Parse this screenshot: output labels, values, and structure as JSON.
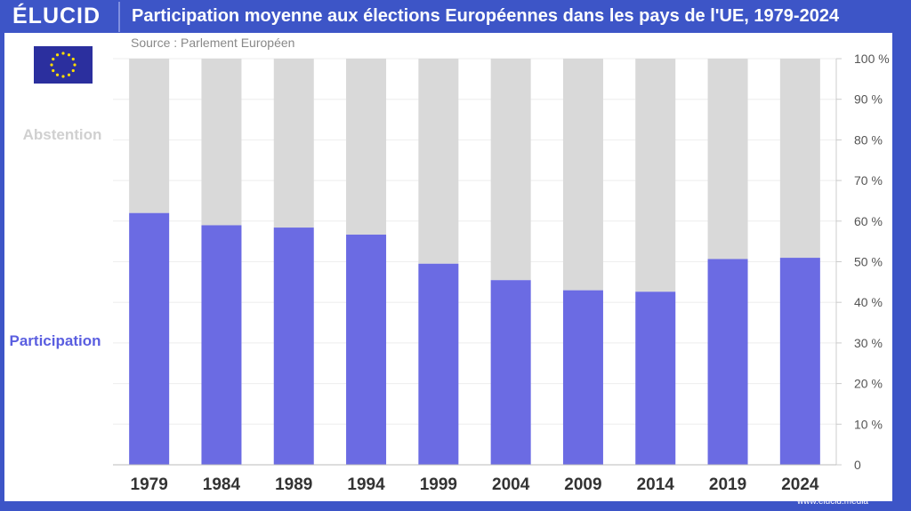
{
  "brand": "ÉLUCID",
  "footer": "www.elucid.media",
  "colors": {
    "frame": "#3d55c7",
    "participation": "#6b6be3",
    "abstention": "#d9d9d9"
  },
  "chart_data": {
    "type": "bar",
    "stacked": true,
    "title": "Participation moyenne aux élections Européennes dans les pays de l'UE, 1979-2024",
    "subtitle": "Source : Parlement Européen",
    "categories": [
      "1979",
      "1984",
      "1989",
      "1994",
      "1999",
      "2004",
      "2009",
      "2014",
      "2019",
      "2024"
    ],
    "series": [
      {
        "name": "Participation",
        "values": [
          61.99,
          58.98,
          58.41,
          56.67,
          49.51,
          45.47,
          42.97,
          42.61,
          50.66,
          50.97
        ]
      },
      {
        "name": "Abstention",
        "values": [
          38.01,
          41.02,
          41.59,
          43.33,
          50.49,
          54.53,
          57.03,
          57.39,
          49.34,
          49.03
        ]
      }
    ],
    "ylim": [
      0,
      100
    ],
    "yticks": [
      "0",
      "10 %",
      "20 %",
      "30 %",
      "40 %",
      "50 %",
      "60 %",
      "70 %",
      "80 %",
      "90 %",
      "100 %"
    ],
    "y_axis_side": "right",
    "grid": true,
    "legend_placement": "left"
  }
}
